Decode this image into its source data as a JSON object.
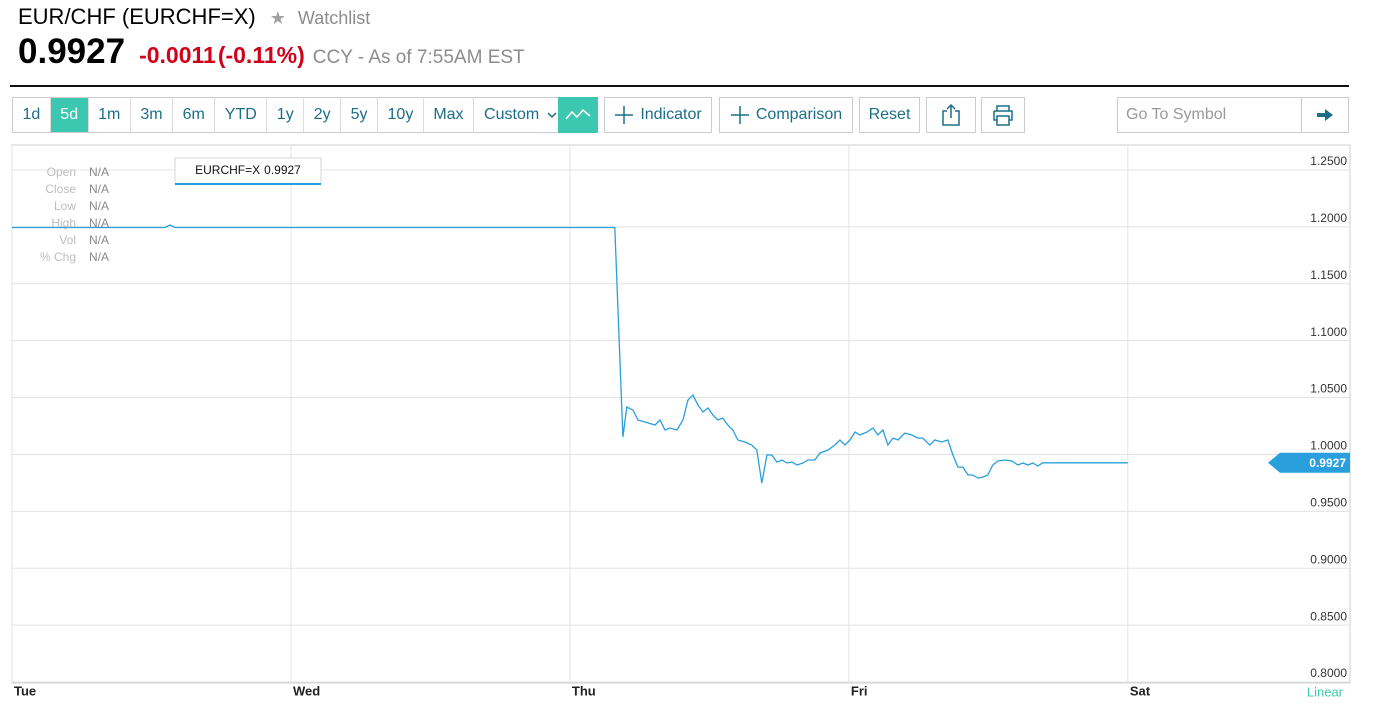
{
  "header": {
    "title": "EUR/CHF (EURCHF=X)",
    "watchlist": "Watchlist",
    "price": "0.9927",
    "change": "-0.0011",
    "change_pct": "(-0.11%)",
    "meta": "CCY - As of 7:55AM EST"
  },
  "toolbar": {
    "ranges": [
      "1d",
      "5d",
      "1m",
      "3m",
      "6m",
      "YTD",
      "1y",
      "2y",
      "5y",
      "10y",
      "Max"
    ],
    "active_range": 1,
    "custom": "Custom",
    "indicator": "Indicator",
    "comparison": "Comparison",
    "reset": "Reset",
    "symbol_placeholder": "Go To Symbol"
  },
  "chart_data": {
    "type": "line",
    "info_panel": [
      {
        "label": "Open",
        "value": "N/A"
      },
      {
        "label": "Close",
        "value": "N/A"
      },
      {
        "label": "Low",
        "value": "N/A"
      },
      {
        "label": "High",
        "value": "N/A"
      },
      {
        "label": "Vol",
        "value": "N/A"
      },
      {
        "label": "% Chg",
        "value": "N/A"
      }
    ],
    "last_price_label": "0.9927",
    "scale_label": "Linear",
    "log_scale": false,
    "grid": true,
    "x": [
      0,
      0.548,
      0.566,
      0.584,
      2.161,
      2.19,
      2.204,
      2.226,
      2.244,
      2.269,
      2.305,
      2.323,
      2.341,
      2.358,
      2.384,
      2.405,
      2.423,
      2.441,
      2.459,
      2.477,
      2.495,
      2.513,
      2.53,
      2.548,
      2.566,
      2.584,
      2.602,
      2.627,
      2.652,
      2.67,
      2.688,
      2.706,
      2.724,
      2.742,
      2.76,
      2.778,
      2.796,
      2.814,
      2.835,
      2.853,
      2.878,
      2.896,
      2.925,
      2.95,
      2.968,
      2.986,
      3.004,
      3.022,
      3.039,
      3.065,
      3.086,
      3.104,
      3.122,
      3.14,
      3.158,
      3.176,
      3.201,
      3.226,
      3.247,
      3.265,
      3.29,
      3.308,
      3.333,
      3.355,
      3.373,
      3.391,
      3.409,
      3.427,
      3.444,
      3.462,
      3.48,
      3.498,
      3.516,
      3.534,
      3.559,
      3.584,
      3.606,
      3.624,
      3.642,
      3.659,
      3.677,
      3.695,
      4.0
    ],
    "series": [
      {
        "name": "EURCHF=X",
        "color": "#2a9fde",
        "values": [
          1.1995,
          1.1995,
          1.2017,
          1.1995,
          1.1995,
          1.0153,
          1.0417,
          1.039,
          1.0303,
          1.0285,
          1.0259,
          1.0303,
          1.0215,
          1.0232,
          1.0215,
          1.0303,
          1.0478,
          1.0522,
          1.0434,
          1.0373,
          1.0408,
          1.0346,
          1.0303,
          1.032,
          1.0259,
          1.0215,
          1.0127,
          1.0109,
          1.0083,
          1.0039,
          0.9749,
          0.9995,
          0.9995,
          0.9933,
          0.9951,
          0.9925,
          0.9933,
          0.9907,
          0.9925,
          0.9951,
          0.9951,
          1.0012,
          1.0039,
          1.0083,
          1.0127,
          1.0083,
          1.0127,
          1.0197,
          1.0171,
          1.0197,
          1.0232,
          1.0171,
          1.0215,
          1.0083,
          1.0144,
          1.0127,
          1.0188,
          1.0171,
          1.0144,
          1.0144,
          1.0083,
          1.0127,
          1.0109,
          1.0127,
          0.9995,
          0.9889,
          0.9889,
          0.9819,
          0.9819,
          0.9793,
          0.9801,
          0.9819,
          0.9907,
          0.9942,
          0.9951,
          0.9942,
          0.9907,
          0.9925,
          0.9907,
          0.9925,
          0.9898,
          0.9927,
          0.9927
        ]
      }
    ],
    "xlim": [
      0,
      4.8
    ],
    "xticks": [
      {
        "value": 0,
        "label": "Tue"
      },
      {
        "value": 1,
        "label": "Wed"
      },
      {
        "value": 2,
        "label": "Thu"
      },
      {
        "value": 3,
        "label": "Fri"
      },
      {
        "value": 4,
        "label": "Sat"
      }
    ],
    "ylim": [
      0.8,
      1.25
    ],
    "yticks": [
      {
        "value": 0.8,
        "label": "0.8000"
      },
      {
        "value": 0.85,
        "label": "0.8500"
      },
      {
        "value": 0.9,
        "label": "0.9000"
      },
      {
        "value": 0.95,
        "label": "0.9500"
      },
      {
        "value": 1.0,
        "label": "1.0000"
      },
      {
        "value": 1.05,
        "label": "1.0500"
      },
      {
        "value": 1.1,
        "label": "1.1000"
      },
      {
        "value": 1.15,
        "label": "1.1500"
      },
      {
        "value": 1.2,
        "label": "1.2000"
      },
      {
        "value": 1.25,
        "label": "1.2500"
      }
    ]
  }
}
